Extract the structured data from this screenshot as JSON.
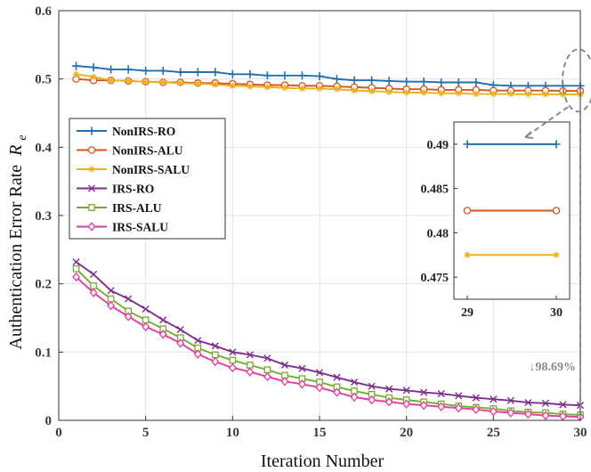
{
  "chart_data": {
    "type": "line",
    "title": "",
    "xlabel": "Iteration Number",
    "ylabel": "Authentication Error Rate",
    "ylabel_sub": "e",
    "ylabel_var": "R",
    "xlim": [
      0,
      30
    ],
    "ylim": [
      0,
      0.6
    ],
    "xticks": [
      "0",
      "5",
      "10",
      "15",
      "20",
      "25",
      "30"
    ],
    "yticks": [
      "0",
      "0.1",
      "0.2",
      "0.3",
      "0.4",
      "0.5",
      "0.6"
    ],
    "grid": true,
    "legend_position": "middle-left",
    "x": [
      1,
      2,
      3,
      4,
      5,
      6,
      7,
      8,
      9,
      10,
      11,
      12,
      13,
      14,
      15,
      16,
      17,
      18,
      19,
      20,
      21,
      22,
      23,
      24,
      25,
      26,
      27,
      28,
      29,
      30
    ],
    "series": [
      {
        "name": "NonIRS-RO",
        "color": "#1f6fb4",
        "marker": "plus",
        "values": [
          0.519,
          0.517,
          0.514,
          0.514,
          0.512,
          0.512,
          0.51,
          0.51,
          0.51,
          0.507,
          0.507,
          0.505,
          0.505,
          0.505,
          0.504,
          0.5,
          0.498,
          0.498,
          0.497,
          0.496,
          0.496,
          0.495,
          0.495,
          0.495,
          0.491,
          0.49,
          0.49,
          0.49,
          0.49,
          0.49
        ]
      },
      {
        "name": "NonIRS-ALU",
        "color": "#d9541a",
        "marker": "circle",
        "values": [
          0.5,
          0.498,
          0.498,
          0.497,
          0.496,
          0.495,
          0.495,
          0.494,
          0.494,
          0.493,
          0.492,
          0.491,
          0.491,
          0.49,
          0.49,
          0.489,
          0.488,
          0.487,
          0.486,
          0.485,
          0.485,
          0.484,
          0.484,
          0.484,
          0.483,
          0.483,
          0.483,
          0.483,
          0.4825,
          0.4825
        ]
      },
      {
        "name": "NonIRS-SALU",
        "color": "#edb120",
        "marker": "asterisk",
        "values": [
          0.507,
          0.503,
          0.498,
          0.497,
          0.496,
          0.495,
          0.494,
          0.493,
          0.492,
          0.49,
          0.489,
          0.488,
          0.487,
          0.486,
          0.486,
          0.485,
          0.483,
          0.482,
          0.481,
          0.48,
          0.48,
          0.479,
          0.479,
          0.478,
          0.478,
          0.478,
          0.4775,
          0.4775,
          0.4775,
          0.4775
        ]
      },
      {
        "name": "IRS-RO",
        "color": "#7e2f8e",
        "marker": "x",
        "values": [
          0.232,
          0.214,
          0.19,
          0.178,
          0.163,
          0.147,
          0.133,
          0.117,
          0.109,
          0.1,
          0.096,
          0.091,
          0.081,
          0.076,
          0.07,
          0.063,
          0.056,
          0.05,
          0.046,
          0.044,
          0.041,
          0.039,
          0.036,
          0.033,
          0.031,
          0.029,
          0.026,
          0.025,
          0.023,
          0.022
        ]
      },
      {
        "name": "IRS-ALU",
        "color": "#77ac30",
        "marker": "square",
        "values": [
          0.222,
          0.197,
          0.178,
          0.16,
          0.147,
          0.134,
          0.121,
          0.106,
          0.096,
          0.088,
          0.081,
          0.074,
          0.066,
          0.061,
          0.056,
          0.049,
          0.043,
          0.038,
          0.033,
          0.03,
          0.027,
          0.024,
          0.021,
          0.019,
          0.017,
          0.014,
          0.012,
          0.011,
          0.009,
          0.008
        ]
      },
      {
        "name": "IRS-SALU",
        "color": "#e83aa0",
        "marker": "diamond",
        "values": [
          0.21,
          0.187,
          0.168,
          0.152,
          0.137,
          0.126,
          0.113,
          0.097,
          0.086,
          0.077,
          0.071,
          0.064,
          0.057,
          0.053,
          0.048,
          0.041,
          0.034,
          0.03,
          0.027,
          0.024,
          0.022,
          0.02,
          0.018,
          0.016,
          0.013,
          0.011,
          0.009,
          0.007,
          0.006,
          0.005
        ]
      }
    ],
    "inset": {
      "xlim": [
        29,
        30
      ],
      "ylim": [
        0.4725,
        0.4925
      ],
      "xticks": [
        "29",
        "30"
      ],
      "yticks": [
        "0.49",
        "0.485",
        "0.48",
        "0.475"
      ],
      "x": [
        29,
        30
      ],
      "series": [
        {
          "name": "NonIRS-RO",
          "values": [
            0.49,
            0.49
          ]
        },
        {
          "name": "NonIRS-ALU",
          "values": [
            0.4825,
            0.4825
          ]
        },
        {
          "name": "NonIRS-SALU",
          "values": [
            0.4775,
            0.4775
          ]
        }
      ]
    },
    "annotations": [
      {
        "text": "↓98.69%",
        "x": 30,
        "y": 0.005
      }
    ]
  }
}
